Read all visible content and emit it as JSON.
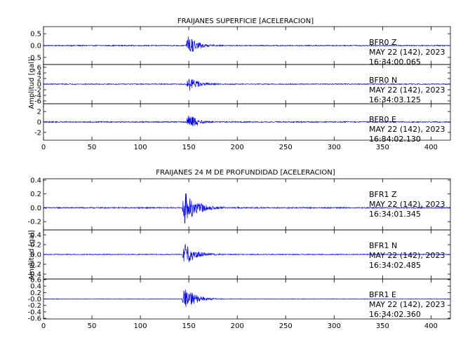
{
  "chart_data": [
    {
      "type": "line",
      "title": "FRAIJANES SUPERFICIE [ACELERACION]",
      "ylabel": "Amplitud [gal]",
      "xlabel": "",
      "xlim": [
        0,
        420
      ],
      "x_ticks": [
        "0",
        "50",
        "100",
        "150",
        "200",
        "250",
        "300",
        "350",
        "400"
      ],
      "series": [
        {
          "name": "BFR0   Z",
          "date": "MAY 22 (142), 2023",
          "time": "16:34:00.065",
          "ylim": [
            -0.8,
            0.8
          ],
          "y_ticks": [
            "0.5",
            "0.0",
            "-0.5"
          ],
          "y_tick_values": [
            0.5,
            0.0,
            -0.5
          ],
          "event_onset": 147,
          "peak_amplitude": 0.62,
          "noise_level": 0.02,
          "decay": 9
        },
        {
          "name": "BFR0   N",
          "date": "MAY 22 (142), 2023",
          "time": "16:34:03.125",
          "ylim": [
            -7,
            7
          ],
          "y_ticks": [
            "6",
            "4",
            "2",
            "0",
            "-2",
            "-4",
            "-6"
          ],
          "y_tick_values": [
            6,
            4,
            2,
            0,
            -2,
            -4,
            -6
          ],
          "event_onset": 147,
          "peak_amplitude": 3.8,
          "noise_level": 0.15,
          "decay": 9
        },
        {
          "name": "BFR0   E",
          "date": "MAY 22 (142), 2023",
          "time": "16:34:02.130",
          "ylim": [
            -3.5,
            3.5
          ],
          "y_ticks": [
            "2",
            "0",
            "-2"
          ],
          "y_tick_values": [
            2,
            0,
            -2
          ],
          "event_onset": 147,
          "peak_amplitude": 2.2,
          "noise_level": 0.1,
          "decay": 9
        }
      ]
    },
    {
      "type": "line",
      "title": "FRAIJANES 24 M DE PROFUNDIDAD [ACELERACION]",
      "ylabel": "Amplitud [gal]",
      "xlabel": "",
      "xlim": [
        0,
        420
      ],
      "x_ticks": [
        "0",
        "50",
        "100",
        "150",
        "200",
        "250",
        "300",
        "350",
        "400"
      ],
      "series": [
        {
          "name": "BFR1   Z",
          "date": "MAY 22 (142), 2023",
          "time": "16:34:01.345",
          "ylim": [
            -0.32,
            0.42
          ],
          "y_ticks": [
            "0.4",
            "0.2",
            "0.0",
            "-0.2"
          ],
          "y_tick_values": [
            0.4,
            0.2,
            0.0,
            -0.2
          ],
          "event_onset": 143,
          "peak_amplitude": 0.32,
          "noise_level": 0.008,
          "decay": 12
        },
        {
          "name": "BFR1   N",
          "date": "MAY 22 (142), 2023",
          "time": "16:34:02.485",
          "ylim": [
            -0.5,
            0.5
          ],
          "y_ticks": [
            "0.4",
            "0.2",
            "0.0",
            "-0.2",
            "-0.4"
          ],
          "y_tick_values": [
            0.4,
            0.2,
            0.0,
            -0.2,
            -0.4
          ],
          "event_onset": 143,
          "peak_amplitude": 0.28,
          "noise_level": 0.008,
          "decay": 12
        },
        {
          "name": "BFR1   E",
          "date": "MAY 22 (142), 2023",
          "time": "16:34:02.360",
          "ylim": [
            -0.62,
            0.62
          ],
          "y_ticks": [
            "0.6",
            "0.4",
            "0.2",
            "-0.0",
            "-0.2",
            "-0.4",
            "-0.6"
          ],
          "y_tick_values": [
            0.6,
            0.4,
            0.2,
            0.0,
            -0.2,
            -0.4,
            -0.6
          ],
          "event_onset": 143,
          "peak_amplitude": 0.55,
          "noise_level": 0.008,
          "decay": 10
        }
      ]
    }
  ],
  "colors": {
    "trace": "#0000ff",
    "axes": "#000000",
    "background": "#ffffff"
  }
}
